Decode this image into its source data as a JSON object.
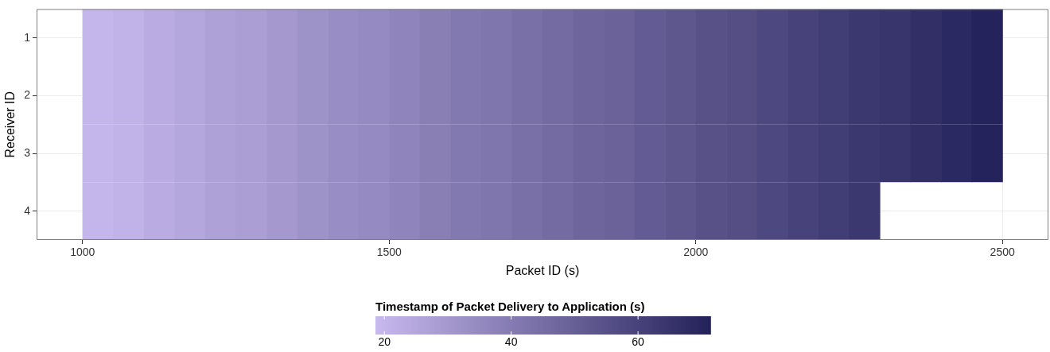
{
  "chart_data": {
    "type": "heatmap",
    "xlabel": "Packet ID (s)",
    "ylabel": "Receiver ID",
    "clabel": "Timestamp of Packet Delivery to Application (s)",
    "x": [
      1025,
      1075,
      1125,
      1175,
      1225,
      1275,
      1325,
      1375,
      1425,
      1475,
      1525,
      1575,
      1625,
      1675,
      1725,
      1775,
      1825,
      1875,
      1925,
      1975,
      2025,
      2075,
      2125,
      2175,
      2225,
      2275,
      2325,
      2375,
      2425,
      2475
    ],
    "xlim": [
      925,
      2575
    ],
    "xticks": [
      1000,
      1500,
      2000,
      2500
    ],
    "y_categories": [
      "1",
      "2",
      "3",
      "4"
    ],
    "cells": [
      [
        20,
        21,
        23,
        25,
        27,
        28,
        30,
        32,
        34,
        35,
        37,
        39,
        41,
        42,
        44,
        46,
        48,
        49,
        51,
        53,
        55,
        56,
        58,
        60,
        62,
        64,
        65,
        67,
        69,
        71
      ],
      [
        20,
        21,
        23,
        25,
        27,
        28,
        30,
        32,
        34,
        35,
        37,
        39,
        41,
        42,
        44,
        46,
        48,
        49,
        51,
        53,
        55,
        56,
        58,
        60,
        62,
        64,
        65,
        67,
        69,
        71
      ],
      [
        20,
        21,
        23,
        25,
        27,
        28,
        30,
        32,
        34,
        35,
        37,
        39,
        41,
        42,
        44,
        46,
        48,
        49,
        51,
        53,
        55,
        56,
        58,
        60,
        62,
        64,
        65,
        67,
        69,
        71
      ],
      [
        20,
        21,
        23,
        25,
        27,
        28,
        30,
        32,
        34,
        35,
        37,
        39,
        41,
        42,
        44,
        46,
        48,
        49,
        51,
        53,
        55,
        56,
        58,
        60,
        62,
        64,
        null,
        null,
        null,
        null
      ]
    ],
    "colors": [
      "#c8b9ef",
      "#24225a"
    ],
    "clim": [
      18.6,
      71.4
    ],
    "cticks": [
      20,
      40,
      60
    ],
    "grid": true
  }
}
